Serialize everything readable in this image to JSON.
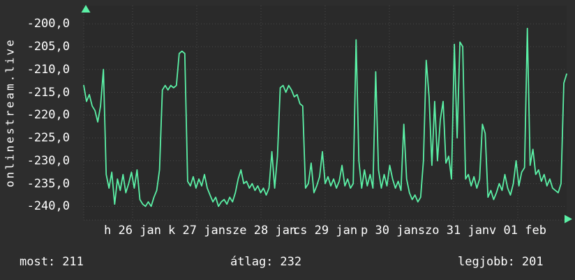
{
  "colors": {
    "background": "#2d2d2d",
    "plot_background": "#2a2a2a",
    "grid": "#4a4a4a",
    "line": "#5bf0a6",
    "axis_arrow": "#5bf0a6",
    "text": "#ffffff"
  },
  "side_label": "onlinestream.live",
  "chart_data": {
    "type": "line",
    "title": "",
    "xlabel": "",
    "ylabel": "",
    "grid": true,
    "legend": "none",
    "y_axis": {
      "tick_labels": [
        "-200,0",
        "-205,0",
        "-210,0",
        "-215,0",
        "-220,0",
        "-225,0",
        "-230,0",
        "-235,0",
        "-240,0"
      ],
      "tick_values": [
        -200,
        -205,
        -210,
        -215,
        -220,
        -225,
        -230,
        -235,
        -240
      ],
      "ylim": [
        -243,
        -196
      ]
    },
    "x_axis": {
      "tick_labels": [
        "h 26 jan",
        "k 27 jan",
        "sze 28 jan",
        "cs 29 jan",
        "p 30 jan",
        "szo 31 jan",
        "v 01 feb"
      ]
    },
    "series": [
      {
        "name": "onlinestream.live",
        "color": "#5bf0a6",
        "values": [
          -213.5,
          -217,
          -215.5,
          -218,
          -219,
          -221.5,
          -218,
          -210,
          -233,
          -236,
          -232.5,
          -239.5,
          -234,
          -236.5,
          -233,
          -237,
          -235,
          -232.5,
          -236,
          -232,
          -238.5,
          -239.5,
          -240,
          -239,
          -240,
          -238,
          -236.5,
          -232,
          -214.5,
          -213.5,
          -214.5,
          -213.5,
          -214,
          -213.5,
          -206.5,
          -206,
          -206.5,
          -234.5,
          -235.5,
          -233.5,
          -236,
          -234,
          -235.5,
          -233,
          -236,
          -237.5,
          -239,
          -238,
          -240,
          -239,
          -238.5,
          -239.5,
          -238,
          -239,
          -237,
          -234,
          -232,
          -235,
          -234.5,
          -236,
          -235,
          -236.5,
          -235.5,
          -237,
          -236,
          -237.5,
          -236,
          -228,
          -236,
          -229,
          -214,
          -213.5,
          -215,
          -213.5,
          -214.5,
          -216,
          -215.5,
          -217.5,
          -218,
          -236,
          -235,
          -230.5,
          -237,
          -235.5,
          -233.5,
          -228,
          -235,
          -233.5,
          -235.5,
          -234,
          -236,
          -234.5,
          -231,
          -235.5,
          -234,
          -236,
          -235,
          -203.5,
          -230,
          -236,
          -232,
          -235.5,
          -233,
          -236,
          -210.5,
          -232,
          -236,
          -233,
          -235.5,
          -231,
          -234,
          -236,
          -234.5,
          -236.5,
          -222,
          -234,
          -237,
          -238.5,
          -237.5,
          -239,
          -238,
          -230,
          -208,
          -216,
          -231,
          -217,
          -230,
          -221,
          -217,
          -230.5,
          -229,
          -234,
          -204.5,
          -225,
          -204,
          -205,
          -234,
          -233,
          -235.5,
          -233.5,
          -236,
          -234,
          -222,
          -224,
          -238,
          -236.5,
          -238.5,
          -237,
          -235,
          -236.5,
          -233,
          -236,
          -237.5,
          -235,
          -230,
          -235.5,
          -232.5,
          -231.5,
          -201,
          -231,
          -227.5,
          -233,
          -232,
          -234.5,
          -233,
          -235.5,
          -234,
          -236,
          -236.5,
          -237,
          -235,
          -213,
          -211
        ]
      }
    ]
  },
  "footer": {
    "items": [
      {
        "label": "most:",
        "value": "211"
      },
      {
        "label": "átlag:",
        "value": "232"
      },
      {
        "label": "legjobb:",
        "value": "201"
      }
    ]
  }
}
